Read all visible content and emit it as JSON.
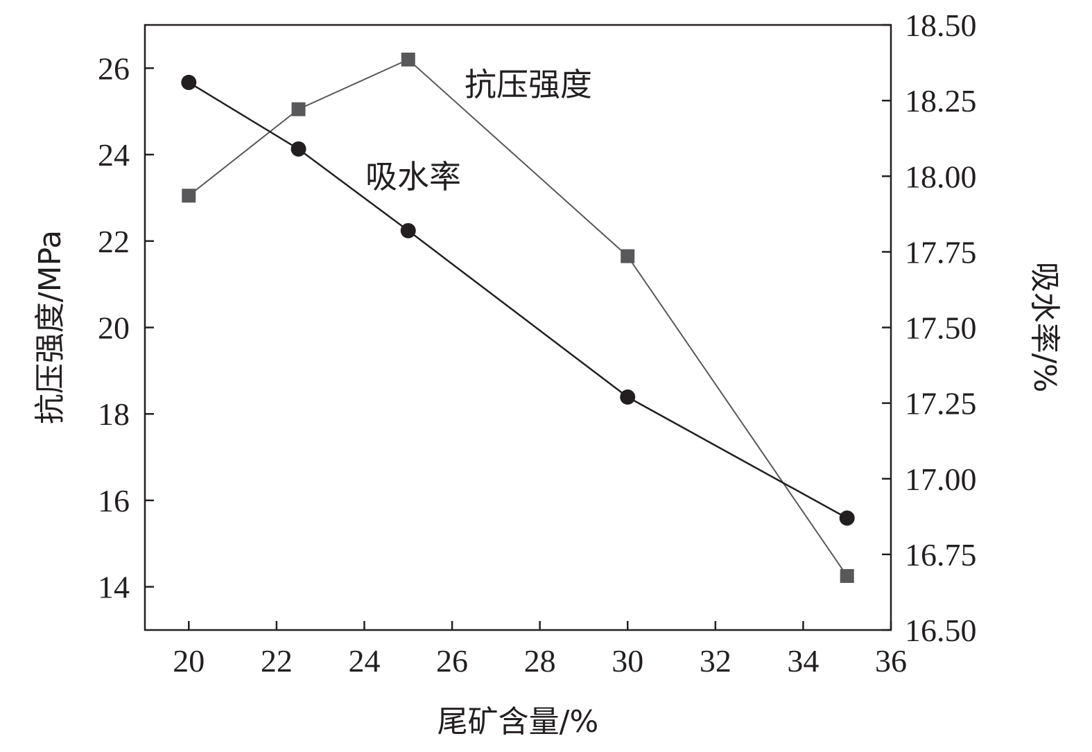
{
  "chart_data": {
    "type": "line",
    "xlabel": "尾矿含量/%",
    "ylabel_left": "抗压强度/MPa",
    "ylabel_right": "吸水率/%",
    "xlim": [
      19,
      36
    ],
    "ylim_left": [
      13,
      27
    ],
    "ylim_right": [
      16.5,
      18.5
    ],
    "x_ticks": [
      "20",
      "22",
      "24",
      "26",
      "28",
      "30",
      "32",
      "34",
      "36"
    ],
    "y_left_ticks": [
      "14",
      "16",
      "18",
      "20",
      "22",
      "24",
      "26"
    ],
    "y_right_ticks": [
      "16.50",
      "16.75",
      "17.00",
      "17.25",
      "17.50",
      "17.75",
      "18.00",
      "18.25",
      "18.50"
    ],
    "grid": false,
    "series": [
      {
        "name": "抗压强度",
        "axis": "left",
        "marker": "square",
        "color": "#58585a",
        "x": [
          20,
          22.5,
          25,
          30,
          35
        ],
        "y": [
          23.05,
          25.05,
          26.2,
          21.65,
          14.25
        ]
      },
      {
        "name": "吸水率",
        "axis": "right",
        "marker": "circle",
        "color": "#231f20",
        "x": [
          20,
          22.5,
          25,
          30,
          35
        ],
        "y": [
          18.31,
          18.09,
          17.82,
          17.27,
          16.87
        ]
      }
    ]
  },
  "colors": {
    "axis": "#231f20",
    "background": "#ffffff"
  }
}
